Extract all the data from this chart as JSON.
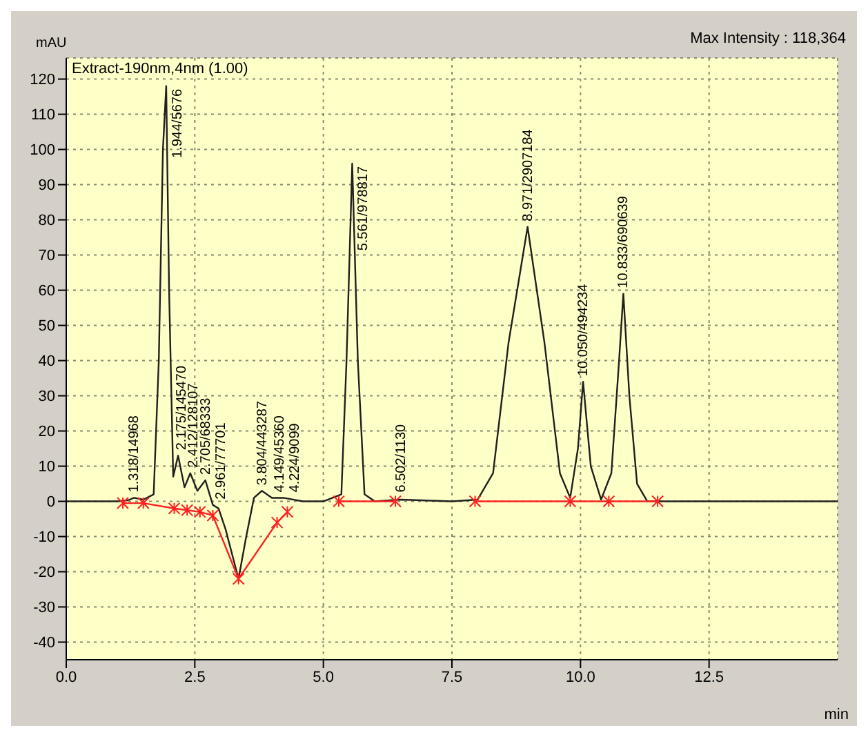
{
  "chart_data": {
    "type": "line",
    "title": "Extract-190nm,4nm (1.00)",
    "ylabel": "mAU",
    "xlabel": "min",
    "annotations": [
      "Max Intensity : 118,364",
      {
        "text": "1.318/14968",
        "x": 1.318,
        "y": 1
      },
      {
        "text": "1.944/5676",
        "x": 1.944,
        "y": 118
      },
      {
        "text": "2.175/145470",
        "x": 2.175,
        "y": 13
      },
      {
        "text": "2.412/128107",
        "x": 2.412,
        "y": 8
      },
      {
        "text": "2.705/68333",
        "x": 2.705,
        "y": 6
      },
      {
        "text": "2.961/77701",
        "x": 2.961,
        "y": -1
      },
      {
        "text": "3.804/443287",
        "x": 3.804,
        "y": 3
      },
      {
        "text": "4.149/45360",
        "x": 4.149,
        "y": 1
      },
      {
        "text": "4.224/9099",
        "x": 4.224,
        "y": 1
      },
      {
        "text": "5.561/978817",
        "x": 5.561,
        "y": 96
      },
      {
        "text": "6.502/1130",
        "x": 6.502,
        "y": 1
      },
      {
        "text": "8.971/2907184",
        "x": 8.971,
        "y": 78
      },
      {
        "text": "10.050/494234",
        "x": 10.05,
        "y": 34
      },
      {
        "text": "10.833/690639",
        "x": 10.833,
        "y": 59
      }
    ],
    "series": [
      {
        "color": "#202020",
        "marker": "none",
        "x": [
          0,
          1.0,
          1.2,
          1.318,
          1.5,
          1.7,
          1.8,
          1.88,
          1.944,
          2.0,
          2.08,
          2.175,
          2.3,
          2.412,
          2.55,
          2.705,
          2.85,
          2.961,
          3.1,
          3.35,
          3.5,
          3.65,
          3.804,
          4.0,
          4.149,
          4.224,
          4.6,
          5.0,
          5.35,
          5.45,
          5.561,
          5.67,
          5.8,
          6.0,
          6.502,
          7.5,
          8.0,
          8.3,
          8.6,
          8.971,
          9.3,
          9.6,
          9.8,
          9.95,
          10.05,
          10.2,
          10.4,
          10.6,
          10.75,
          10.833,
          10.95,
          11.1,
          11.3,
          12.5,
          15
        ],
        "values": [
          0,
          0,
          0.3,
          1,
          0.5,
          2,
          40,
          100,
          118,
          60,
          7,
          13,
          4,
          8,
          3,
          6,
          -1,
          -2,
          -8,
          -22,
          -10,
          1,
          3,
          1,
          1,
          1,
          0,
          0,
          2,
          40,
          96,
          40,
          2,
          0,
          0.5,
          0,
          0.5,
          8,
          45,
          78,
          45,
          8,
          1,
          15,
          34,
          10,
          0.5,
          8,
          40,
          59,
          30,
          5,
          0,
          0,
          0
        ]
      },
      {
        "color": "#ff2020",
        "marker": "cross",
        "x": [
          1.1,
          1.5,
          2.1,
          2.35,
          2.6,
          2.85,
          3.35,
          4.1,
          4.3,
          4.4,
          5.3,
          6.4,
          6.45,
          7.95,
          9.8,
          10.55,
          11.5
        ],
        "values": [
          -0.5,
          -0.5,
          -2,
          -2.5,
          -3,
          -4,
          -22,
          -6,
          -3,
          null,
          0,
          0,
          null,
          0,
          0,
          0,
          0
        ]
      }
    ],
    "xlim": [
      0,
      15
    ],
    "ylim": [
      -45,
      126
    ],
    "xticks": [
      {
        "value": 0,
        "label": "0.0"
      },
      {
        "value": 2.5,
        "label": "2.5"
      },
      {
        "value": 5,
        "label": "5.0"
      },
      {
        "value": 7.5,
        "label": "7.5"
      },
      {
        "value": 10,
        "label": "10.0"
      },
      {
        "value": 12.5,
        "label": "12.5"
      }
    ],
    "yticks": [
      -40,
      -30,
      -20,
      -10,
      0,
      10,
      20,
      30,
      40,
      50,
      60,
      70,
      80,
      90,
      100,
      110,
      120
    ],
    "grid": true,
    "line_style": "solid"
  }
}
